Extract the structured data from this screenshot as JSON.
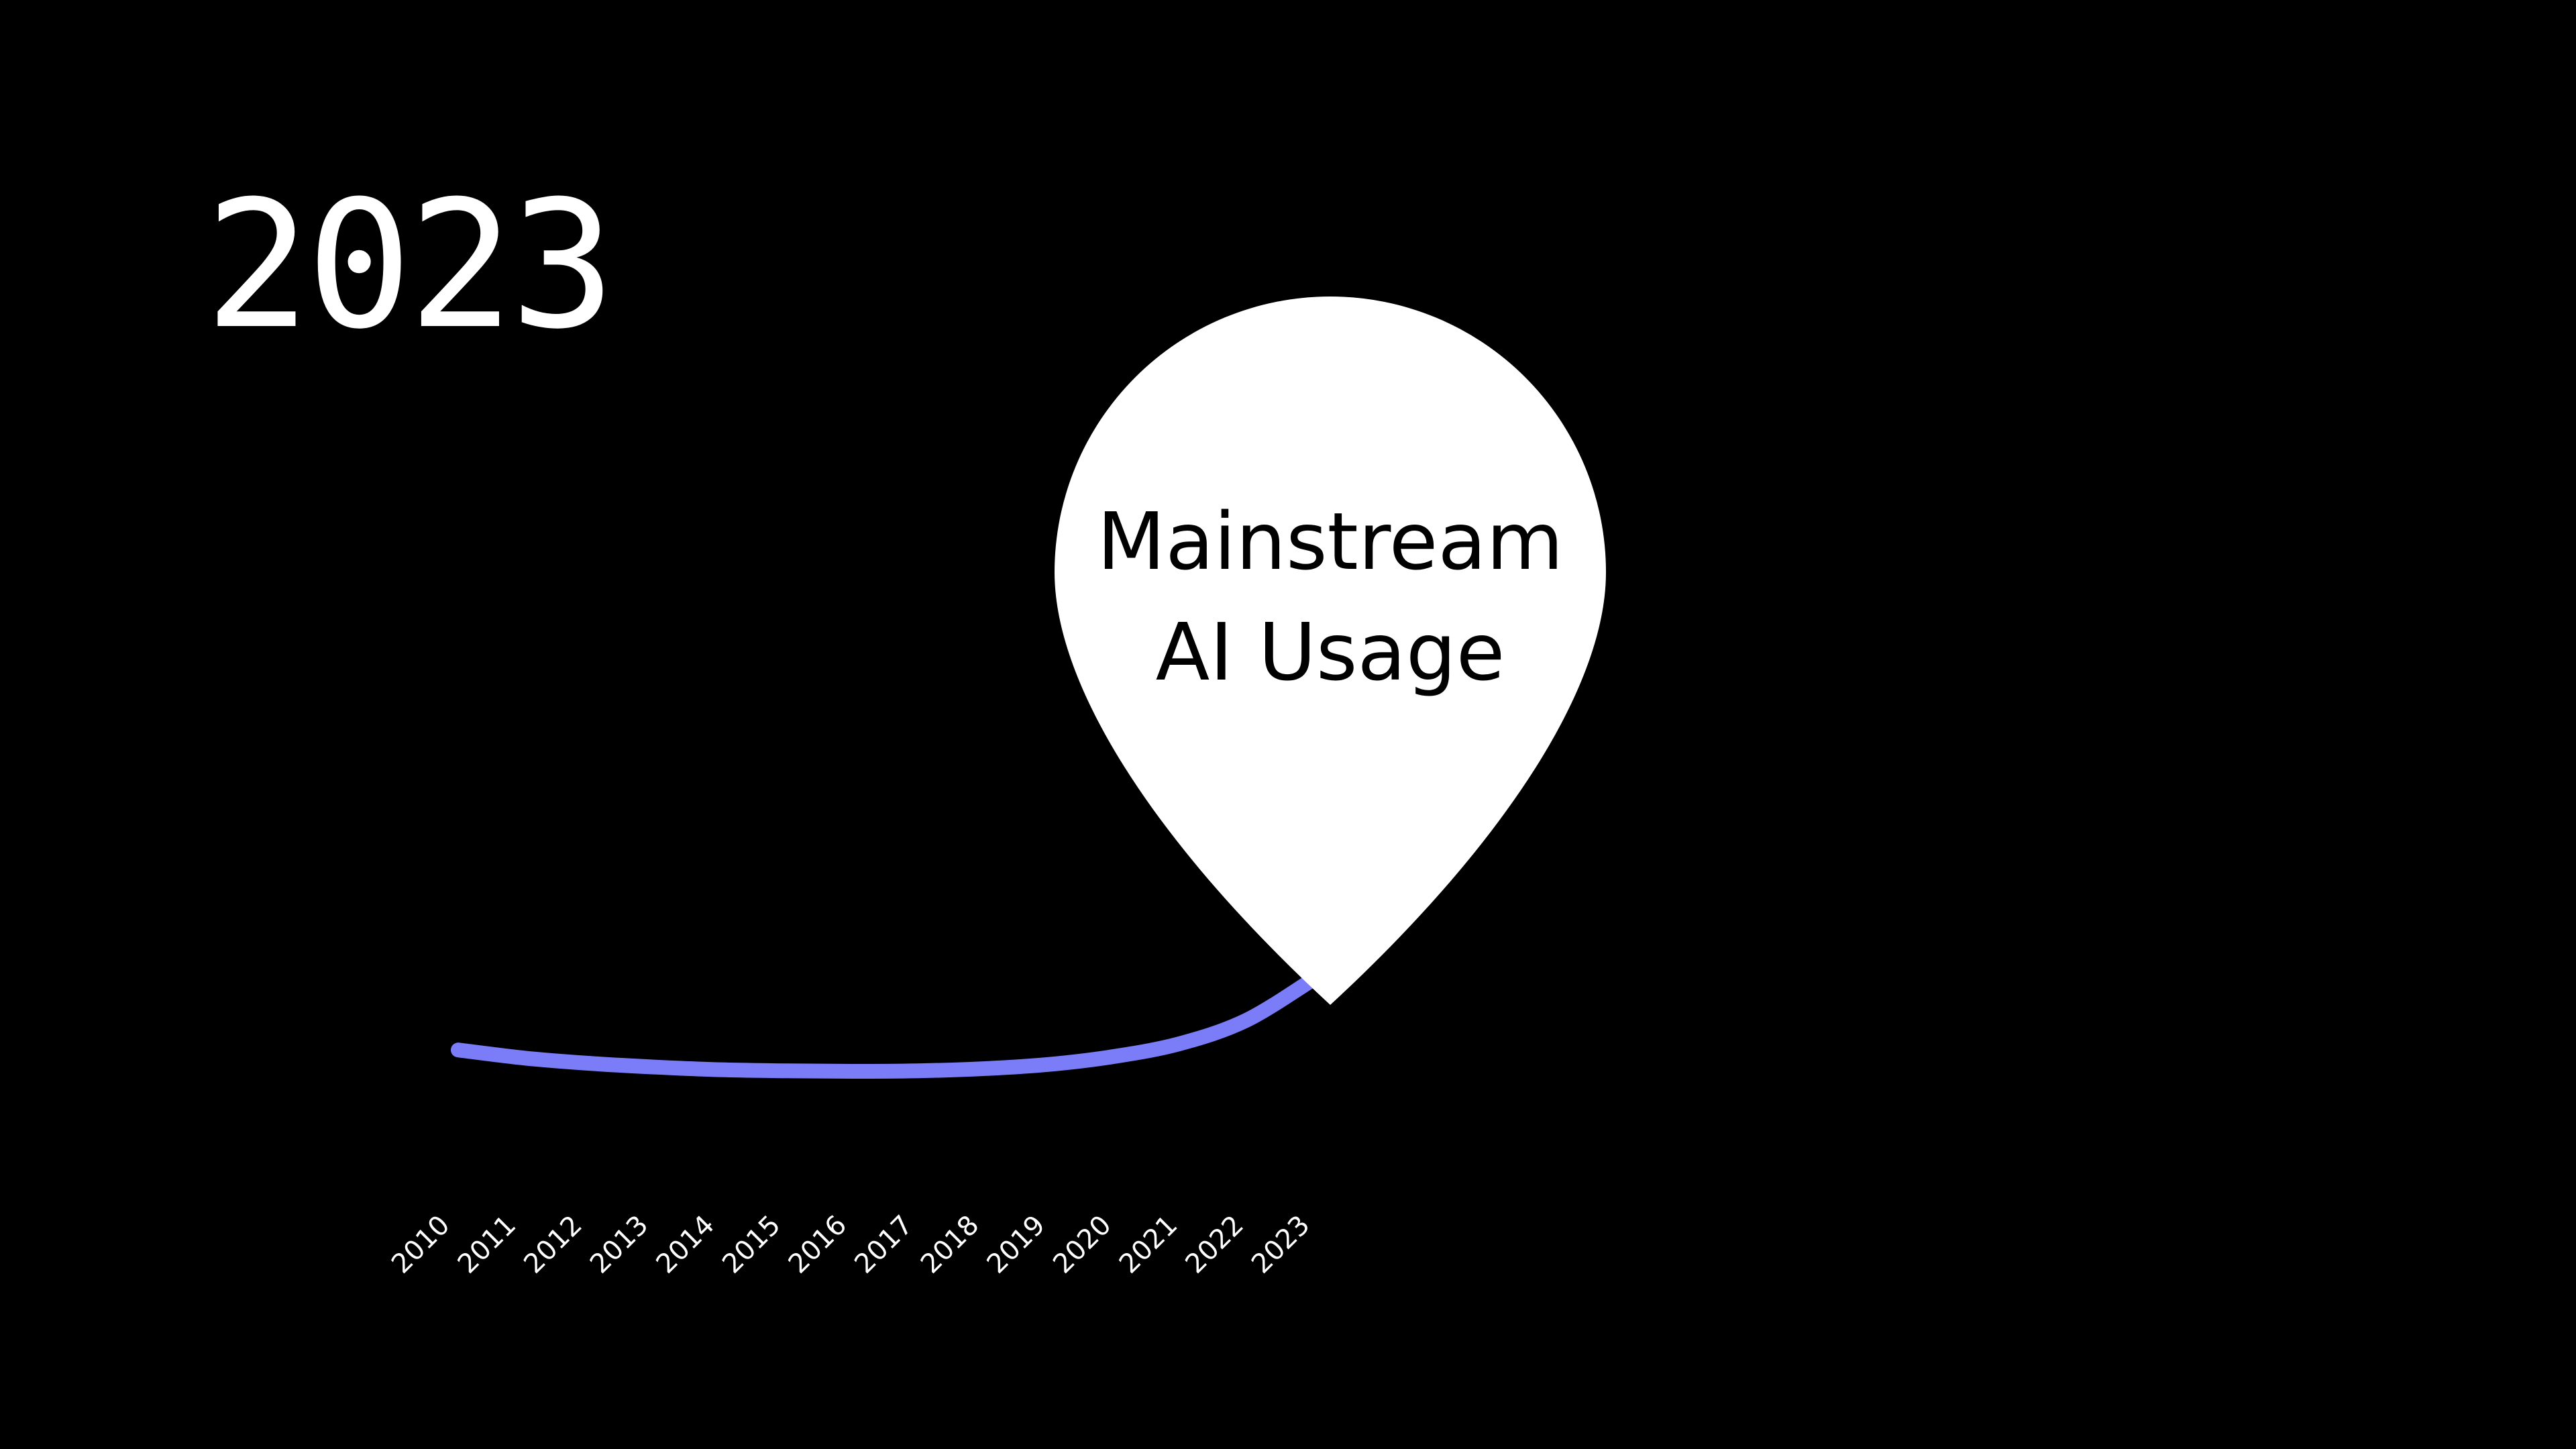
{
  "year_display": "2023",
  "colors": {
    "background": "#000000",
    "line": "#7b7cf8",
    "pin": "#ffffff",
    "pin_text": "#000000",
    "text": "#ffffff"
  },
  "chart_data": {
    "type": "line",
    "title": "",
    "xlabel": "",
    "ylabel": "",
    "grid": false,
    "x": [
      2010,
      2011,
      2012,
      2013,
      2014,
      2015,
      2016,
      2017,
      2018,
      2019,
      2020,
      2021,
      2022,
      2023
    ],
    "tick_labels": [
      "2010",
      "2011",
      "2012",
      "2013",
      "2014",
      "2015",
      "2016",
      "2017",
      "2018",
      "2019",
      "2020",
      "2021",
      "2022",
      "2023"
    ],
    "series": [
      {
        "values": [
          4,
          2.5,
          1.5,
          0.8,
          0.3,
          0.1,
          0,
          0.1,
          0.5,
          1.3,
          2.8,
          5.2,
          9.5,
          17
        ]
      }
    ],
    "ylim": [
      -2,
      100
    ],
    "annotation": {
      "x": 2023,
      "lines": [
        "Mainstream",
        "AI Usage"
      ]
    }
  }
}
